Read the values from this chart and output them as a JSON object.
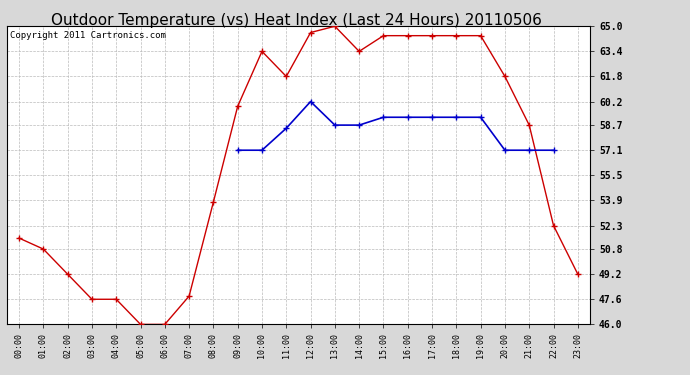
{
  "title": "Outdoor Temperature (vs) Heat Index (Last 24 Hours) 20110506",
  "copyright": "Copyright 2011 Cartronics.com",
  "x_labels": [
    "00:00",
    "01:00",
    "02:00",
    "03:00",
    "04:00",
    "05:00",
    "06:00",
    "07:00",
    "08:00",
    "09:00",
    "10:00",
    "11:00",
    "12:00",
    "13:00",
    "14:00",
    "15:00",
    "16:00",
    "17:00",
    "18:00",
    "19:00",
    "20:00",
    "21:00",
    "22:00",
    "23:00"
  ],
  "temp_red": [
    51.5,
    50.8,
    49.2,
    47.6,
    47.6,
    46.0,
    46.0,
    47.8,
    53.8,
    59.9,
    63.4,
    61.8,
    64.6,
    65.0,
    63.4,
    64.4,
    64.4,
    64.4,
    64.4,
    64.4,
    61.8,
    58.7,
    52.3,
    49.2
  ],
  "heat_blue": [
    null,
    null,
    null,
    null,
    null,
    null,
    null,
    null,
    null,
    57.1,
    57.1,
    58.5,
    60.2,
    58.7,
    58.7,
    59.2,
    59.2,
    59.2,
    59.2,
    59.2,
    57.1,
    57.1,
    57.1,
    null
  ],
  "ylim": [
    46.0,
    65.0
  ],
  "yticks": [
    46.0,
    47.6,
    49.2,
    50.8,
    52.3,
    53.9,
    55.5,
    57.1,
    58.7,
    60.2,
    61.8,
    63.4,
    65.0
  ],
  "red_color": "#cc0000",
  "blue_color": "#0000cc",
  "grid_color": "#bbbbbb",
  "bg_color": "#d8d8d8",
  "plot_bg": "#ffffff",
  "title_fontsize": 11,
  "copyright_fontsize": 6.5
}
